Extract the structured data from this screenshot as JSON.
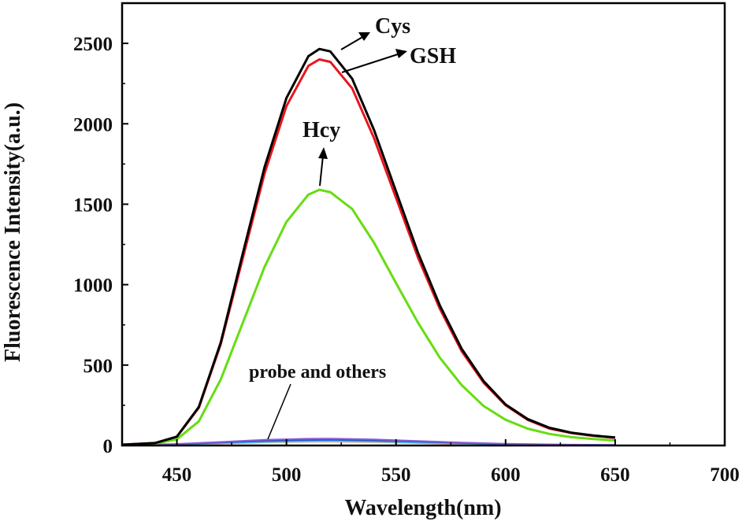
{
  "chart_data": {
    "type": "line",
    "xlabel": "Wavelength(nm)",
    "ylabel": "Fluorescence Intensity(a.u.)",
    "xlim": [
      425,
      700
    ],
    "ylim": [
      0,
      2750
    ],
    "xticks": [
      450,
      500,
      550,
      600,
      650,
      700
    ],
    "yticks": [
      0,
      500,
      1000,
      1500,
      2000,
      2500
    ],
    "grid": false,
    "annotations": {
      "cys": "Cys",
      "gsh": "GSH",
      "hcy": "Hcy",
      "others": "probe and others"
    },
    "series": [
      {
        "name": "Cys",
        "color": "#000000",
        "points": [
          [
            425,
            5
          ],
          [
            440,
            15
          ],
          [
            450,
            55
          ],
          [
            460,
            240
          ],
          [
            470,
            640
          ],
          [
            480,
            1190
          ],
          [
            490,
            1730
          ],
          [
            500,
            2160
          ],
          [
            510,
            2420
          ],
          [
            515,
            2465
          ],
          [
            520,
            2450
          ],
          [
            530,
            2280
          ],
          [
            540,
            1960
          ],
          [
            550,
            1580
          ],
          [
            560,
            1200
          ],
          [
            570,
            870
          ],
          [
            580,
            600
          ],
          [
            590,
            400
          ],
          [
            600,
            255
          ],
          [
            610,
            165
          ],
          [
            620,
            110
          ],
          [
            630,
            80
          ],
          [
            640,
            62
          ],
          [
            650,
            50
          ]
        ]
      },
      {
        "name": "GSH",
        "color": "#e8161c",
        "points": [
          [
            425,
            5
          ],
          [
            440,
            15
          ],
          [
            450,
            55
          ],
          [
            460,
            235
          ],
          [
            470,
            630
          ],
          [
            480,
            1160
          ],
          [
            490,
            1690
          ],
          [
            500,
            2110
          ],
          [
            510,
            2360
          ],
          [
            515,
            2400
          ],
          [
            520,
            2385
          ],
          [
            530,
            2220
          ],
          [
            540,
            1910
          ],
          [
            550,
            1540
          ],
          [
            560,
            1170
          ],
          [
            570,
            850
          ],
          [
            580,
            585
          ],
          [
            590,
            390
          ],
          [
            600,
            250
          ],
          [
            610,
            160
          ],
          [
            620,
            105
          ],
          [
            630,
            78
          ],
          [
            640,
            60
          ],
          [
            650,
            48
          ]
        ]
      },
      {
        "name": "Hcy",
        "color": "#66dd11",
        "points": [
          [
            425,
            4
          ],
          [
            440,
            12
          ],
          [
            450,
            38
          ],
          [
            460,
            150
          ],
          [
            470,
            410
          ],
          [
            480,
            760
          ],
          [
            490,
            1110
          ],
          [
            500,
            1390
          ],
          [
            510,
            1560
          ],
          [
            515,
            1590
          ],
          [
            520,
            1575
          ],
          [
            530,
            1470
          ],
          [
            540,
            1260
          ],
          [
            550,
            1010
          ],
          [
            560,
            765
          ],
          [
            570,
            545
          ],
          [
            580,
            375
          ],
          [
            590,
            245
          ],
          [
            600,
            160
          ],
          [
            610,
            105
          ],
          [
            620,
            72
          ],
          [
            630,
            52
          ],
          [
            640,
            40
          ],
          [
            650,
            32
          ]
        ]
      },
      {
        "name": "",
        "color": "#8a5ad6",
        "points": [
          [
            425,
            2
          ],
          [
            450,
            10
          ],
          [
            470,
            22
          ],
          [
            490,
            35
          ],
          [
            510,
            42
          ],
          [
            520,
            43
          ],
          [
            540,
            38
          ],
          [
            560,
            28
          ],
          [
            580,
            18
          ],
          [
            600,
            11
          ],
          [
            625,
            6
          ],
          [
            650,
            4
          ]
        ]
      },
      {
        "name": "",
        "color": "#2255cc",
        "points": [
          [
            425,
            1
          ],
          [
            450,
            8
          ],
          [
            470,
            18
          ],
          [
            490,
            28
          ],
          [
            510,
            34
          ],
          [
            520,
            35
          ],
          [
            540,
            31
          ],
          [
            560,
            23
          ],
          [
            580,
            15
          ],
          [
            600,
            9
          ],
          [
            625,
            5
          ],
          [
            650,
            3
          ]
        ]
      },
      {
        "name": "",
        "color": "#55ccee",
        "points": [
          [
            425,
            1
          ],
          [
            450,
            6
          ],
          [
            470,
            14
          ],
          [
            490,
            22
          ],
          [
            510,
            27
          ],
          [
            520,
            28
          ],
          [
            540,
            25
          ],
          [
            560,
            18
          ],
          [
            580,
            12
          ],
          [
            600,
            7
          ],
          [
            625,
            4
          ],
          [
            650,
            2
          ]
        ]
      },
      {
        "name": "",
        "color": "#d8a070",
        "points": [
          [
            425,
            1
          ],
          [
            450,
            5
          ],
          [
            470,
            12
          ],
          [
            490,
            19
          ],
          [
            510,
            23
          ],
          [
            520,
            24
          ],
          [
            540,
            21
          ],
          [
            560,
            15
          ],
          [
            580,
            10
          ],
          [
            600,
            6
          ],
          [
            625,
            3
          ],
          [
            650,
            2
          ]
        ]
      }
    ]
  }
}
